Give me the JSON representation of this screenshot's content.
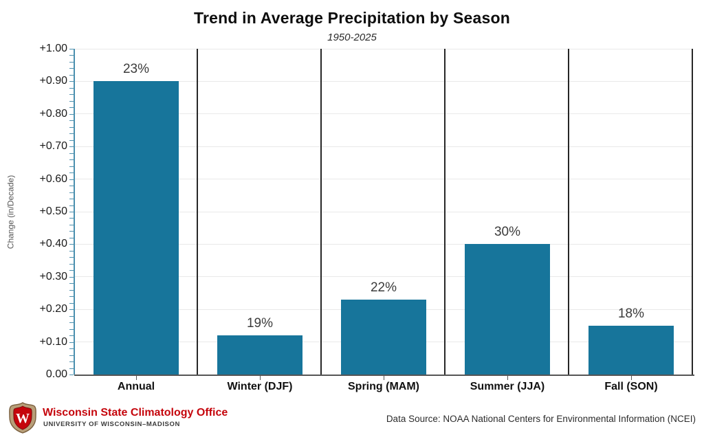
{
  "title": "Trend in Average Precipitation by Season",
  "subtitle": "1950-2025",
  "chart_data": {
    "type": "bar",
    "categories": [
      "Annual",
      "Winter (DJF)",
      "Spring (MAM)",
      "Summer (JJA)",
      "Fall (SON)"
    ],
    "values": [
      0.9,
      0.12,
      0.23,
      0.4,
      0.15
    ],
    "bar_labels": [
      "23%",
      "19%",
      "22%",
      "30%",
      "18%"
    ],
    "title": "Trend in Average Precipitation by Season",
    "subtitle": "1950-2025",
    "xlabel": "",
    "ylabel": "Change (in/Decade)",
    "ylim": [
      0,
      1.0
    ],
    "ytick_labels": [
      "0.00",
      "+0.10",
      "+0.20",
      "+0.30",
      "+0.40",
      "+0.50",
      "+0.60",
      "+0.70",
      "+0.80",
      "+0.90",
      "+1.00"
    ],
    "ytick_step": 0.1,
    "minor_tick_step": 0.02,
    "grid": "horizontal-major-only",
    "legend": "none",
    "bar_color": "#17759b",
    "axis_color": "#4a8fae",
    "divider_color": "#262626",
    "gridline_color": "#e9e9e9",
    "value_label_color": "#3b3b3b"
  },
  "footer": {
    "logo_letter": "W",
    "org_name": "Wisconsin State Climatology Office",
    "org_subname": "UNIVERSITY OF WISCONSIN–MADISON",
    "data_source": "Data Source: NOAA National Centers for Environmental Information (NCEI)",
    "brand_red": "#c5050c",
    "crest_tan": "#b89f79"
  }
}
